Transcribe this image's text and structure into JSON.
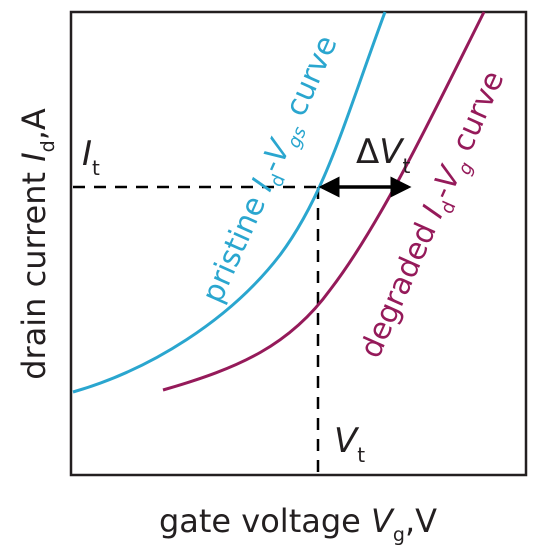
{
  "axes": {
    "x_label": {
      "main": "gate voltage ",
      "var": "V",
      "sub": "g",
      "unit": ",V"
    },
    "y_label": {
      "main": "drain current ",
      "var": "I",
      "sub": "d",
      "unit": ",A"
    }
  },
  "markers": {
    "threshold_current": {
      "var": "I",
      "sub": "t"
    },
    "threshold_voltage": {
      "var": "V",
      "sub": "t"
    },
    "shift": {
      "delta": "Δ",
      "var": "V",
      "sub": "t"
    }
  },
  "curves": {
    "pristine": {
      "color": "#2aa6cf",
      "text": {
        "pre": "pristine ",
        "i": "I",
        "isub": "d",
        "dash": "-",
        "v": "V",
        "vsub": "gs",
        "post": " curve"
      }
    },
    "degraded": {
      "color": "#951a5a",
      "text": {
        "pre": "degraded ",
        "i": "I",
        "isub": "d",
        "dash": "-",
        "v": "V",
        "vsub": "g",
        "post": " curve"
      }
    }
  },
  "colors": {
    "axes": "#231f20",
    "arrow": "#000000"
  }
}
